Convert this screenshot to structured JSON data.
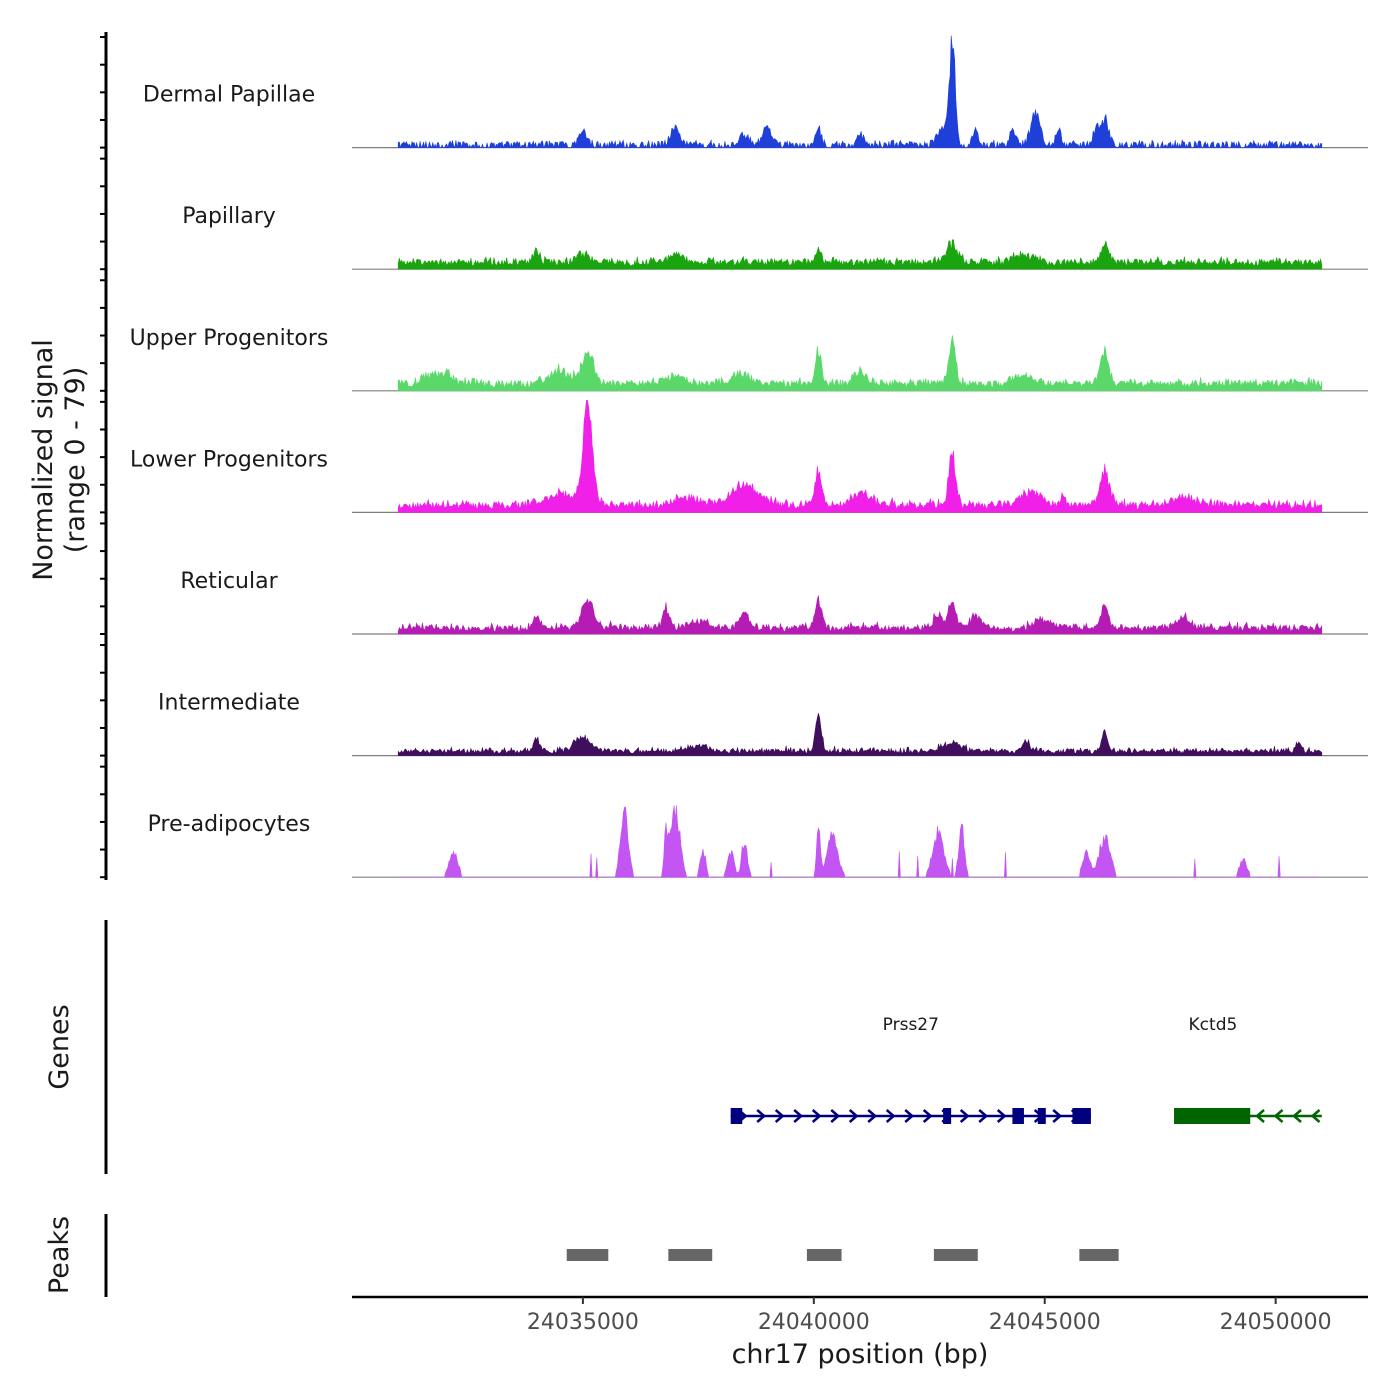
{
  "chart_data": {
    "type": "area",
    "title": "",
    "ylabel": "Normalized signal",
    "ylabel_range": "(range 0 - 79)",
    "xlabel": "chr17 position (bp)",
    "xlim": [
      24030000,
      24052000
    ],
    "ylim": [
      0,
      79
    ],
    "x_ticks": [
      "24035000",
      "24040000",
      "24045000",
      "24050000"
    ],
    "x_tick_values": [
      24035000,
      24040000,
      24045000,
      24050000
    ],
    "signal_start": 24031000,
    "signal_end": 24051000,
    "tracks": [
      {
        "name": "Dermal Papillae",
        "color": "#1f3fd9",
        "baseline": 3,
        "noise": 2,
        "sparse": true,
        "peaks": [
          [
            24035000,
            10,
            80
          ],
          [
            24037000,
            14,
            100
          ],
          [
            24038500,
            8,
            120
          ],
          [
            24039000,
            12,
            100
          ],
          [
            24040100,
            14,
            50
          ],
          [
            24041000,
            10,
            60
          ],
          [
            24042800,
            14,
            120
          ],
          [
            24043000,
            79,
            60
          ],
          [
            24043500,
            12,
            60
          ],
          [
            24044300,
            12,
            60
          ],
          [
            24044800,
            25,
            100
          ],
          [
            24045300,
            10,
            60
          ],
          [
            24046300,
            20,
            90
          ],
          [
            24046100,
            12,
            60
          ]
        ]
      },
      {
        "name": "Papillary",
        "color": "#1aa40f",
        "baseline": 5,
        "noise": 3,
        "sparse": false,
        "peaks": [
          [
            24034000,
            8,
            80
          ],
          [
            24035000,
            6,
            150
          ],
          [
            24037000,
            5,
            150
          ],
          [
            24040100,
            9,
            60
          ],
          [
            24043000,
            14,
            120
          ],
          [
            24044500,
            6,
            200
          ],
          [
            24046300,
            14,
            80
          ]
        ]
      },
      {
        "name": "Upper Progenitors",
        "color": "#5ad96a",
        "baseline": 5,
        "noise": 4,
        "sparse": false,
        "peaks": [
          [
            24031900,
            8,
            250
          ],
          [
            24034500,
            10,
            200
          ],
          [
            24035100,
            25,
            120
          ],
          [
            24037000,
            6,
            200
          ],
          [
            24038400,
            8,
            200
          ],
          [
            24040100,
            27,
            60
          ],
          [
            24041000,
            8,
            150
          ],
          [
            24043000,
            32,
            70
          ],
          [
            24044500,
            6,
            200
          ],
          [
            24046300,
            25,
            80
          ]
        ]
      },
      {
        "name": "Lower Progenitors",
        "color": "#f020e8",
        "baseline": 5,
        "noise": 4,
        "sparse": false,
        "peaks": [
          [
            24034500,
            8,
            250
          ],
          [
            24035100,
            72,
            110
          ],
          [
            24037200,
            6,
            250
          ],
          [
            24038500,
            15,
            300
          ],
          [
            24040100,
            28,
            70
          ],
          [
            24041000,
            10,
            200
          ],
          [
            24043000,
            42,
            70
          ],
          [
            24044700,
            10,
            200
          ],
          [
            24045400,
            8,
            60
          ],
          [
            24046300,
            28,
            100
          ],
          [
            24048000,
            6,
            250
          ]
        ]
      },
      {
        "name": "Reticular",
        "color": "#b41cb4",
        "baseline": 4,
        "noise": 4,
        "sparse": false,
        "peaks": [
          [
            24034000,
            8,
            80
          ],
          [
            24035100,
            22,
            120
          ],
          [
            24036800,
            14,
            80
          ],
          [
            24037500,
            6,
            200
          ],
          [
            24038500,
            10,
            120
          ],
          [
            24040100,
            20,
            70
          ],
          [
            24042700,
            10,
            100
          ],
          [
            24043000,
            18,
            80
          ],
          [
            24043500,
            10,
            100
          ],
          [
            24045000,
            6,
            200
          ],
          [
            24046300,
            16,
            80
          ],
          [
            24048000,
            9,
            120
          ]
        ]
      },
      {
        "name": "Intermediate",
        "color": "#3f0e5c",
        "baseline": 3,
        "noise": 3,
        "sparse": false,
        "peaks": [
          [
            24034000,
            10,
            60
          ],
          [
            24035000,
            10,
            180
          ],
          [
            24037500,
            5,
            200
          ],
          [
            24040100,
            26,
            60
          ],
          [
            24043000,
            6,
            200
          ],
          [
            24044600,
            9,
            60
          ],
          [
            24046300,
            13,
            70
          ],
          [
            24050500,
            6,
            60
          ]
        ]
      },
      {
        "name": "Pre-adipocytes",
        "color": "#c355f2",
        "baseline": 0,
        "noise": 0,
        "sparse": true,
        "peaks": [
          [
            24032200,
            20,
            90
          ],
          [
            24035900,
            55,
            80
          ],
          [
            24036800,
            30,
            40
          ],
          [
            24037000,
            52,
            100
          ],
          [
            24037600,
            20,
            60
          ],
          [
            24038200,
            20,
            70
          ],
          [
            24038500,
            28,
            60
          ],
          [
            24040100,
            35,
            40
          ],
          [
            24040400,
            30,
            120
          ],
          [
            24042700,
            34,
            120
          ],
          [
            24043200,
            38,
            60
          ],
          [
            24046300,
            30,
            120
          ],
          [
            24045900,
            20,
            80
          ],
          [
            24049300,
            14,
            80
          ]
        ]
      }
    ],
    "genes": [
      {
        "name": "Prss27",
        "start": 24038200,
        "end": 24046000,
        "strand": "+",
        "color": "#00007f",
        "exons": [
          [
            24038200,
            24038450
          ],
          [
            24042800,
            24042950
          ],
          [
            24044300,
            24044550
          ],
          [
            24044850,
            24045000
          ],
          [
            24045600,
            24046000
          ]
        ]
      },
      {
        "name": "Kctd5",
        "start": 24047800,
        "end": 24051000,
        "strand": "-",
        "color": "#006400",
        "exons": [
          [
            24047800,
            24049450
          ]
        ]
      }
    ],
    "peaks": [
      {
        "start": 24034650,
        "end": 24035550
      },
      {
        "start": 24036850,
        "end": 24037800
      },
      {
        "start": 24039850,
        "end": 24040600
      },
      {
        "start": 24042600,
        "end": 24043550
      },
      {
        "start": 24045750,
        "end": 24046600
      }
    ],
    "panels": {
      "genes_label": "Genes",
      "peaks_label": "Peaks"
    },
    "colors": {
      "axis": "#000000",
      "baseline": "#7f7f7f",
      "peak_bar": "#666666"
    }
  }
}
